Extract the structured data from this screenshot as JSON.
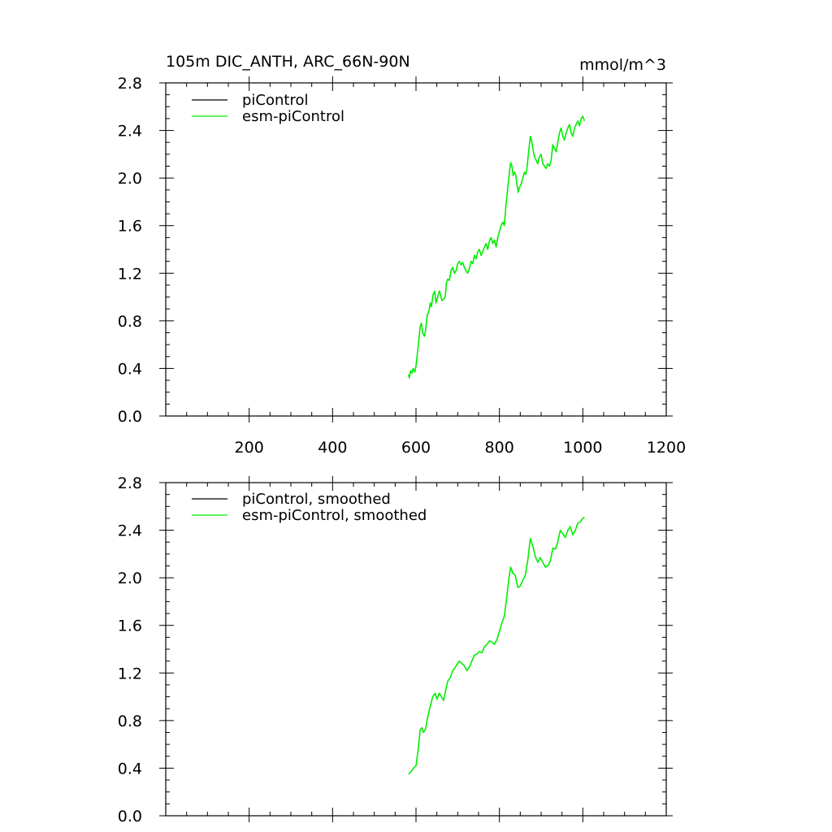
{
  "chart_data": [
    {
      "type": "line",
      "title": "105m DIC_ANTH, ARC_66N-90N",
      "units": "mmol/m^3",
      "xlim": [
        0,
        1200
      ],
      "ylim": [
        0.0,
        2.8
      ],
      "x_ticks": [
        200,
        400,
        600,
        800,
        1000,
        1200
      ],
      "x_tick_labels": [
        "200",
        "400",
        "600",
        "800",
        "1000",
        "1200"
      ],
      "y_ticks": [
        0.0,
        0.4,
        0.8,
        1.2,
        1.6,
        2.0,
        2.4,
        2.8
      ],
      "y_tick_labels": [
        "0.0",
        "0.4",
        "0.8",
        "1.2",
        "1.6",
        "2.0",
        "2.4",
        "2.8"
      ],
      "grid": false,
      "legend_position": "top-left",
      "series": [
        {
          "name": "piControl",
          "color": "#000000",
          "points": []
        },
        {
          "name": "esm-piControl",
          "color": "#00ee00",
          "points": [
            [
              582,
              0.35
            ],
            [
              584,
              0.32
            ],
            [
              587,
              0.38
            ],
            [
              590,
              0.36
            ],
            [
              593,
              0.4
            ],
            [
              597,
              0.37
            ],
            [
              600,
              0.42
            ],
            [
              604,
              0.55
            ],
            [
              607,
              0.65
            ],
            [
              610,
              0.75
            ],
            [
              613,
              0.78
            ],
            [
              616,
              0.7
            ],
            [
              620,
              0.67
            ],
            [
              623,
              0.72
            ],
            [
              627,
              0.85
            ],
            [
              631,
              0.88
            ],
            [
              634,
              0.95
            ],
            [
              637,
              0.92
            ],
            [
              641,
              1.02
            ],
            [
              645,
              1.05
            ],
            [
              648,
              0.95
            ],
            [
              652,
              1.0
            ],
            [
              656,
              1.05
            ],
            [
              659,
              1.02
            ],
            [
              662,
              0.97
            ],
            [
              666,
              0.98
            ],
            [
              670,
              1.0
            ],
            [
              673,
              1.12
            ],
            [
              676,
              1.15
            ],
            [
              680,
              1.14
            ],
            [
              684,
              1.22
            ],
            [
              688,
              1.25
            ],
            [
              692,
              1.2
            ],
            [
              696,
              1.22
            ],
            [
              700,
              1.28
            ],
            [
              704,
              1.3
            ],
            [
              708,
              1.27
            ],
            [
              712,
              1.29
            ],
            [
              716,
              1.25
            ],
            [
              720,
              1.22
            ],
            [
              724,
              1.2
            ],
            [
              728,
              1.24
            ],
            [
              732,
              1.3
            ],
            [
              736,
              1.28
            ],
            [
              740,
              1.35
            ],
            [
              744,
              1.32
            ],
            [
              748,
              1.38
            ],
            [
              752,
              1.4
            ],
            [
              756,
              1.35
            ],
            [
              760,
              1.38
            ],
            [
              764,
              1.42
            ],
            [
              768,
              1.45
            ],
            [
              772,
              1.4
            ],
            [
              776,
              1.47
            ],
            [
              780,
              1.5
            ],
            [
              784,
              1.45
            ],
            [
              788,
              1.48
            ],
            [
              792,
              1.42
            ],
            [
              796,
              1.5
            ],
            [
              800,
              1.55
            ],
            [
              804,
              1.6
            ],
            [
              808,
              1.63
            ],
            [
              812,
              1.6
            ],
            [
              815,
              1.75
            ],
            [
              818,
              1.85
            ],
            [
              821,
              1.95
            ],
            [
              824,
              2.05
            ],
            [
              827,
              2.13
            ],
            [
              830,
              2.1
            ],
            [
              833,
              2.02
            ],
            [
              836,
              2.05
            ],
            [
              839,
              2.03
            ],
            [
              842,
              1.95
            ],
            [
              845,
              1.88
            ],
            [
              848,
              1.92
            ],
            [
              852,
              1.95
            ],
            [
              856,
              2.0
            ],
            [
              860,
              2.05
            ],
            [
              863,
              2.03
            ],
            [
              866,
              2.08
            ],
            [
              870,
              2.22
            ],
            [
              874,
              2.35
            ],
            [
              877,
              2.32
            ],
            [
              880,
              2.25
            ],
            [
              884,
              2.18
            ],
            [
              888,
              2.15
            ],
            [
              892,
              2.12
            ],
            [
              896,
              2.18
            ],
            [
              900,
              2.2
            ],
            [
              904,
              2.12
            ],
            [
              908,
              2.1
            ],
            [
              912,
              2.08
            ],
            [
              916,
              2.12
            ],
            [
              920,
              2.1
            ],
            [
              924,
              2.15
            ],
            [
              928,
              2.28
            ],
            [
              932,
              2.25
            ],
            [
              936,
              2.22
            ],
            [
              940,
              2.3
            ],
            [
              944,
              2.38
            ],
            [
              948,
              2.42
            ],
            [
              952,
              2.35
            ],
            [
              956,
              2.32
            ],
            [
              960,
              2.38
            ],
            [
              964,
              2.42
            ],
            [
              968,
              2.45
            ],
            [
              972,
              2.38
            ],
            [
              976,
              2.35
            ],
            [
              980,
              2.42
            ],
            [
              984,
              2.45
            ],
            [
              988,
              2.48
            ],
            [
              992,
              2.44
            ],
            [
              996,
              2.5
            ],
            [
              1000,
              2.52
            ],
            [
              1004,
              2.48
            ]
          ]
        }
      ]
    },
    {
      "type": "line",
      "xlim": [
        0,
        1200
      ],
      "ylim": [
        0.0,
        2.8
      ],
      "y_ticks": [
        0.0,
        0.4,
        0.8,
        1.2,
        1.6,
        2.0,
        2.4,
        2.8
      ],
      "y_tick_labels": [
        "0.0",
        "0.4",
        "0.8",
        "1.2",
        "1.6",
        "2.0",
        "2.4",
        "2.8"
      ],
      "grid": false,
      "legend_position": "top-left",
      "series": [
        {
          "name": "piControl, smoothed",
          "color": "#000000",
          "points": []
        },
        {
          "name": "esm-piControl, smoothed",
          "color": "#00ee00",
          "points": [
            [
              582,
              0.35
            ],
            [
              588,
              0.37
            ],
            [
              594,
              0.4
            ],
            [
              600,
              0.42
            ],
            [
              605,
              0.55
            ],
            [
              610,
              0.72
            ],
            [
              614,
              0.74
            ],
            [
              618,
              0.7
            ],
            [
              623,
              0.73
            ],
            [
              628,
              0.83
            ],
            [
              634,
              0.92
            ],
            [
              640,
              1.0
            ],
            [
              646,
              1.03
            ],
            [
              650,
              0.98
            ],
            [
              656,
              1.03
            ],
            [
              661,
              1.0
            ],
            [
              666,
              0.97
            ],
            [
              671,
              1.05
            ],
            [
              676,
              1.13
            ],
            [
              682,
              1.16
            ],
            [
              688,
              1.22
            ],
            [
              693,
              1.24
            ],
            [
              698,
              1.27
            ],
            [
              704,
              1.3
            ],
            [
              710,
              1.28
            ],
            [
              716,
              1.26
            ],
            [
              722,
              1.22
            ],
            [
              728,
              1.25
            ],
            [
              734,
              1.3
            ],
            [
              740,
              1.35
            ],
            [
              746,
              1.36
            ],
            [
              752,
              1.38
            ],
            [
              758,
              1.37
            ],
            [
              764,
              1.42
            ],
            [
              770,
              1.44
            ],
            [
              776,
              1.47
            ],
            [
              782,
              1.46
            ],
            [
              788,
              1.44
            ],
            [
              794,
              1.48
            ],
            [
              800,
              1.55
            ],
            [
              806,
              1.62
            ],
            [
              812,
              1.68
            ],
            [
              817,
              1.82
            ],
            [
              822,
              1.98
            ],
            [
              827,
              2.09
            ],
            [
              832,
              2.04
            ],
            [
              838,
              2.02
            ],
            [
              844,
              1.92
            ],
            [
              850,
              1.93
            ],
            [
              856,
              1.98
            ],
            [
              862,
              2.02
            ],
            [
              868,
              2.15
            ],
            [
              874,
              2.33
            ],
            [
              880,
              2.27
            ],
            [
              886,
              2.18
            ],
            [
              892,
              2.13
            ],
            [
              898,
              2.17
            ],
            [
              904,
              2.13
            ],
            [
              910,
              2.09
            ],
            [
              916,
              2.1
            ],
            [
              922,
              2.14
            ],
            [
              928,
              2.25
            ],
            [
              934,
              2.24
            ],
            [
              940,
              2.3
            ],
            [
              946,
              2.4
            ],
            [
              952,
              2.37
            ],
            [
              958,
              2.34
            ],
            [
              964,
              2.4
            ],
            [
              970,
              2.43
            ],
            [
              976,
              2.36
            ],
            [
              982,
              2.4
            ],
            [
              988,
              2.46
            ],
            [
              994,
              2.47
            ],
            [
              1000,
              2.5
            ],
            [
              1004,
              2.51
            ]
          ]
        }
      ]
    }
  ]
}
